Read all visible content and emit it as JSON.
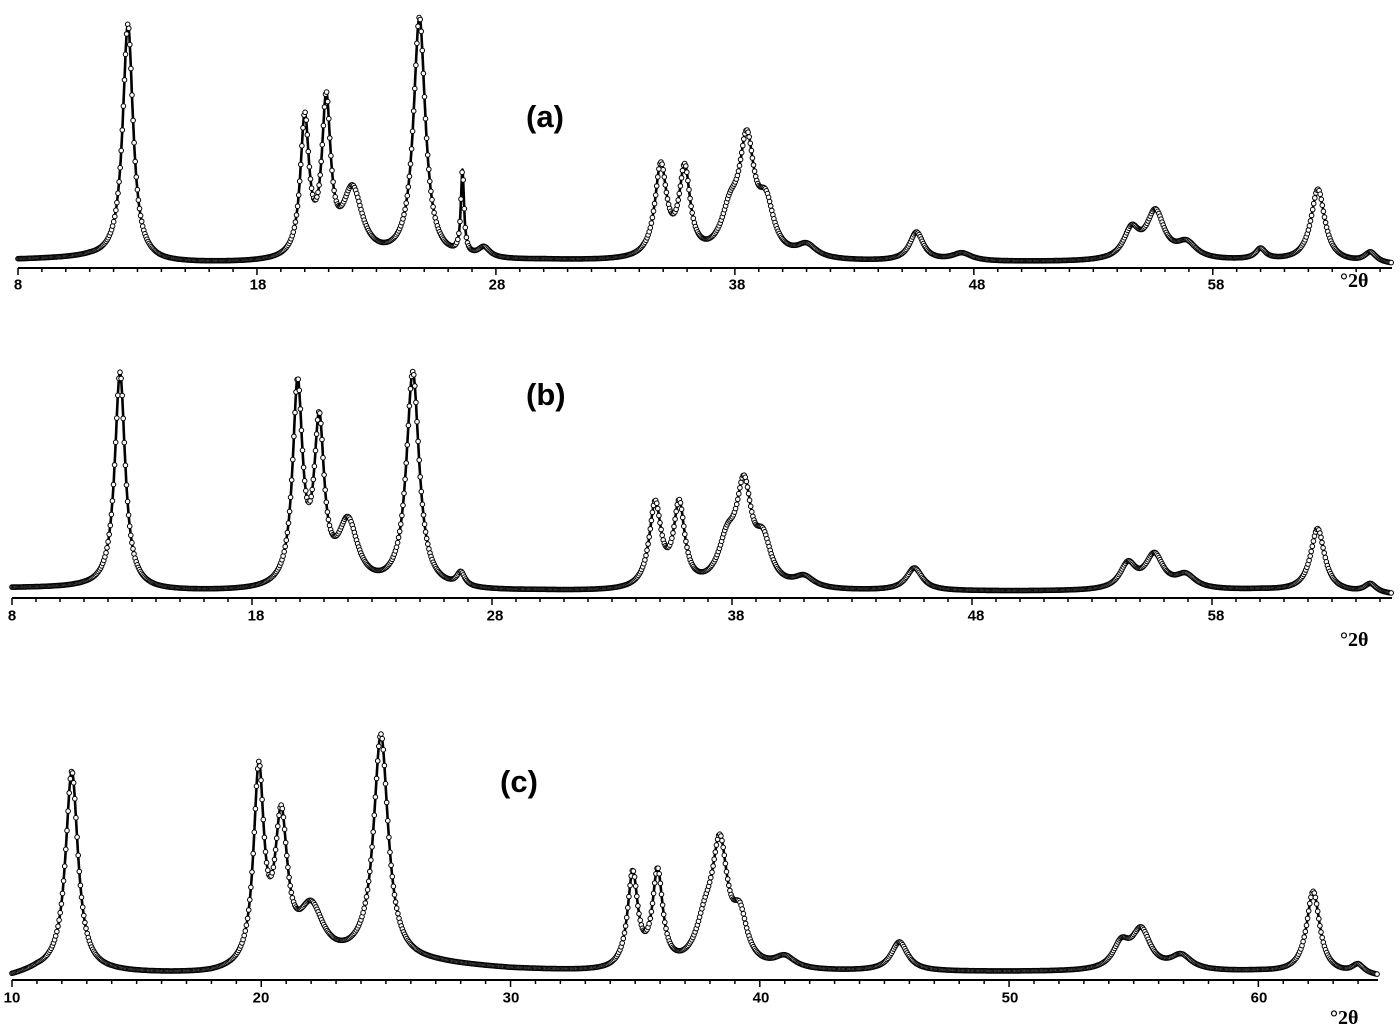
{
  "chart_data": [
    {
      "type": "line",
      "panel_label": "(a)",
      "x_unit": "°2θ",
      "xlim": [
        8,
        65.5
      ],
      "ticks": [
        "8",
        "18",
        "28",
        "38",
        "48",
        "58"
      ],
      "tick_values": [
        8,
        18,
        28,
        38,
        48,
        58
      ],
      "grid": false,
      "marker": "open-circle",
      "series": [
        {
          "baseline": [
            [
              8,
              2
            ],
            [
              11,
              2.5
            ],
            [
              14,
              0.5
            ],
            [
              20,
              0.5
            ],
            [
              30,
              1.5
            ],
            [
              34,
              1
            ],
            [
              44,
              1
            ],
            [
              54,
              1
            ],
            [
              60,
              1.5
            ],
            [
              65.5,
              0
            ]
          ],
          "peaks": [
            {
              "x": 12.6,
              "h": 91,
              "w": 0.26
            },
            {
              "x": 20.0,
              "h": 53,
              "w": 0.22
            },
            {
              "x": 20.9,
              "h": 58,
              "w": 0.22
            },
            {
              "x": 22.0,
              "h": 26,
              "w": 0.5
            },
            {
              "x": 24.8,
              "h": 93,
              "w": 0.3
            },
            {
              "x": 26.6,
              "h": 32,
              "w": 0.08
            },
            {
              "x": 27.5,
              "h": 4,
              "w": 0.3
            },
            {
              "x": 34.9,
              "h": 35,
              "w": 0.3
            },
            {
              "x": 35.9,
              "h": 33,
              "w": 0.28
            },
            {
              "x": 37.8,
              "h": 15,
              "w": 0.45
            },
            {
              "x": 38.5,
              "h": 42,
              "w": 0.38
            },
            {
              "x": 39.3,
              "h": 18,
              "w": 0.4
            },
            {
              "x": 41.0,
              "h": 5,
              "w": 0.5
            },
            {
              "x": 45.6,
              "h": 11,
              "w": 0.35
            },
            {
              "x": 47.5,
              "h": 3,
              "w": 0.5
            },
            {
              "x": 54.6,
              "h": 11,
              "w": 0.4
            },
            {
              "x": 55.6,
              "h": 18,
              "w": 0.45
            },
            {
              "x": 56.9,
              "h": 6,
              "w": 0.5
            },
            {
              "x": 60.0,
              "h": 4,
              "w": 0.25
            },
            {
              "x": 62.4,
              "h": 28,
              "w": 0.35
            },
            {
              "x": 64.6,
              "h": 4,
              "w": 0.3
            }
          ]
        }
      ]
    },
    {
      "type": "line",
      "panel_label": "(b)",
      "x_unit": "°2θ",
      "xlim": [
        8,
        65.5
      ],
      "ticks": [
        "8",
        "18",
        "28",
        "38",
        "48",
        "58"
      ],
      "tick_values": [
        8,
        18,
        28,
        38,
        48,
        58
      ],
      "grid": false,
      "marker": "open-circle",
      "series": [
        {
          "baseline": [
            [
              8,
              3
            ],
            [
              11,
              3
            ],
            [
              14,
              1.5
            ],
            [
              20,
              1
            ],
            [
              30,
              1.5
            ],
            [
              34,
              1
            ],
            [
              44,
              1.5
            ],
            [
              54,
              1.5
            ],
            [
              60,
              2
            ],
            [
              65.5,
              0
            ]
          ],
          "peaks": [
            {
              "x": 12.5,
              "h": 96,
              "w": 0.26
            },
            {
              "x": 19.9,
              "h": 88,
              "w": 0.25
            },
            {
              "x": 20.8,
              "h": 69,
              "w": 0.25
            },
            {
              "x": 22.0,
              "h": 28,
              "w": 0.5
            },
            {
              "x": 24.7,
              "h": 96,
              "w": 0.32
            },
            {
              "x": 26.7,
              "h": 6,
              "w": 0.2
            },
            {
              "x": 34.8,
              "h": 37,
              "w": 0.3
            },
            {
              "x": 35.8,
              "h": 36,
              "w": 0.28
            },
            {
              "x": 37.8,
              "h": 18,
              "w": 0.45
            },
            {
              "x": 38.5,
              "h": 42,
              "w": 0.38
            },
            {
              "x": 39.3,
              "h": 18,
              "w": 0.4
            },
            {
              "x": 41.0,
              "h": 5,
              "w": 0.5
            },
            {
              "x": 45.6,
              "h": 10,
              "w": 0.4
            },
            {
              "x": 54.5,
              "h": 11,
              "w": 0.4
            },
            {
              "x": 55.6,
              "h": 15,
              "w": 0.45
            },
            {
              "x": 56.9,
              "h": 6,
              "w": 0.5
            },
            {
              "x": 62.4,
              "h": 28,
              "w": 0.35
            },
            {
              "x": 64.6,
              "h": 4,
              "w": 0.3
            }
          ]
        }
      ]
    },
    {
      "type": "line",
      "panel_label": "(c)",
      "x_unit": "°2θ",
      "xlim": [
        10,
        64.8
      ],
      "ticks": [
        "10",
        "20",
        "30",
        "40",
        "50",
        "60"
      ],
      "tick_values": [
        10,
        20,
        30,
        40,
        50,
        60
      ],
      "grid": false,
      "marker": "open-circle",
      "series": [
        {
          "baseline": [
            [
              10,
              0
            ],
            [
              11,
              2
            ],
            [
              14,
              1.5
            ],
            [
              18,
              0.5
            ],
            [
              20,
              1
            ],
            [
              24,
              6
            ],
            [
              27,
              5
            ],
            [
              30,
              3
            ],
            [
              34,
              1.5
            ],
            [
              44,
              2
            ],
            [
              54,
              2
            ],
            [
              60,
              2
            ],
            [
              64.8,
              0
            ]
          ],
          "peaks": [
            {
              "x": 12.4,
              "h": 83,
              "w": 0.3
            },
            {
              "x": 19.9,
              "h": 80,
              "w": 0.25
            },
            {
              "x": 20.8,
              "h": 58,
              "w": 0.3
            },
            {
              "x": 22.0,
              "h": 22,
              "w": 0.6
            },
            {
              "x": 24.8,
              "h": 93,
              "w": 0.35
            },
            {
              "x": 34.9,
              "h": 39,
              "w": 0.25
            },
            {
              "x": 35.9,
              "h": 39,
              "w": 0.25
            },
            {
              "x": 37.8,
              "h": 15,
              "w": 0.45
            },
            {
              "x": 38.4,
              "h": 48,
              "w": 0.38
            },
            {
              "x": 39.2,
              "h": 18,
              "w": 0.35
            },
            {
              "x": 41.0,
              "h": 5,
              "w": 0.5
            },
            {
              "x": 45.6,
              "h": 12,
              "w": 0.4
            },
            {
              "x": 54.5,
              "h": 10,
              "w": 0.4
            },
            {
              "x": 55.3,
              "h": 16,
              "w": 0.45
            },
            {
              "x": 56.9,
              "h": 6,
              "w": 0.5
            },
            {
              "x": 62.2,
              "h": 34,
              "w": 0.32
            },
            {
              "x": 64.0,
              "h": 4,
              "w": 0.3
            }
          ]
        }
      ]
    }
  ]
}
